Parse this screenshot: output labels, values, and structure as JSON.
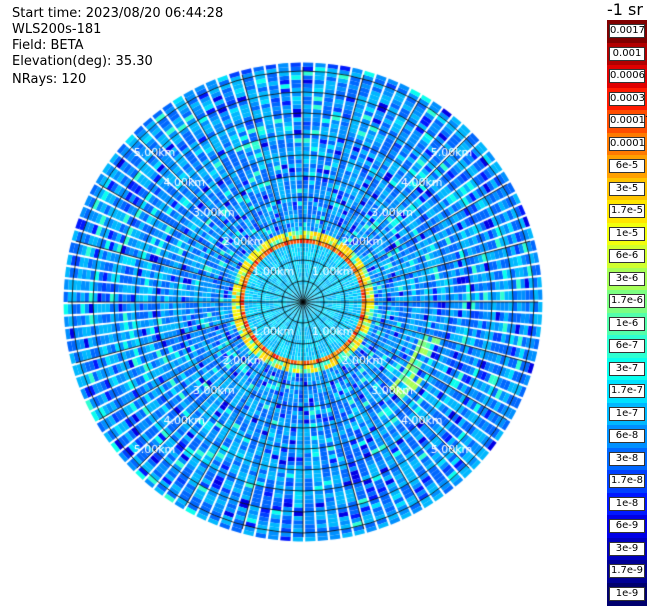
{
  "info": {
    "start_time": "Start time: 2023/08/20 06:44:28",
    "instrument": "WLS200s-181",
    "field": "Field: BETA",
    "elevation": "Elevation(deg): 35.30",
    "nrays": "NRays: 120"
  },
  "ring_labels": [
    "1.00km",
    "2.00km",
    "3.00km",
    "4.00km",
    "5.00km"
  ],
  "ring_distances_km": [
    1,
    2,
    3,
    4,
    5
  ],
  "colorbar": {
    "title": "-1 sr",
    "labels": [
      "0.0017",
      "0.001",
      "0.0006",
      "0.0003",
      "0.00017",
      "0.0001",
      "6e-5",
      "3e-5",
      "1.7e-5",
      "1e-5",
      "6e-6",
      "3e-6",
      "1.7e-6",
      "1e-6",
      "6e-7",
      "3e-7",
      "1.7e-7",
      "1e-7",
      "6e-8",
      "3e-8",
      "1.7e-8",
      "1e-8",
      "6e-9",
      "3e-9",
      "1.7e-9",
      "1e-9"
    ],
    "colors": [
      "#800000",
      "#b20000",
      "#e00000",
      "#ff1a00",
      "#ff4d00",
      "#ff7a00",
      "#ffa000",
      "#ffc400",
      "#ffe600",
      "#f2ff0d",
      "#d0ff2e",
      "#a6ff58",
      "#7cff82",
      "#53ffab",
      "#2effd2",
      "#0affee",
      "#00e0ff",
      "#00b8ff",
      "#0090ff",
      "#0068ff",
      "#0040ff",
      "#0018ff",
      "#0000e6",
      "#0000bd",
      "#000094",
      "#00006e"
    ]
  },
  "field": {
    "max_range_km": 5.6,
    "n_rays": 120,
    "gate_km": 0.1
  }
}
